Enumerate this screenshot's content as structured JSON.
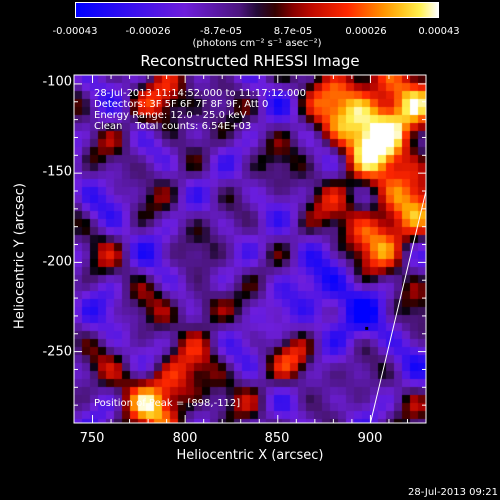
{
  "colorbar": {
    "ticks": [
      "-0.00043",
      "-0.00026",
      "-8.7e-05",
      "8.7e-05",
      "0.00026",
      "0.00043"
    ],
    "unit_label": "(photons cm⁻² s⁻¹ asec⁻²)",
    "min": -0.00043,
    "max": 0.00043
  },
  "chart_data": {
    "type": "heatmap",
    "title": "Reconstructed RHESSI Image",
    "xlabel": "Heliocentric X (arcsec)",
    "ylabel": "Heliocentric Y (arcsec)",
    "xlim": [
      740,
      930
    ],
    "ylim": [
      -290,
      -95
    ],
    "x_ticks": [
      "750",
      "800",
      "850",
      "900"
    ],
    "y_ticks": [
      "-100",
      "-150",
      "-200",
      "-250"
    ],
    "colormap": "blue-purple-black-red-orange-yellow-white",
    "annotations": [
      "28-Jul-2013 11:14:52.000 to 11:17:12.000",
      "Detectors: 3F 5F 6F 7F 8F 9F, Att 0",
      "Energy Range: 12.0 - 25.0 keV",
      "Clean    Total counts: 6.54E+03"
    ],
    "peak_label": "Position of Peak = [898,-112]",
    "peak": [
      898,
      -112
    ],
    "limb_line": [
      [
        900,
        -290
      ],
      [
        930,
        -160
      ]
    ]
  },
  "footer": {
    "timestamp": "28-Jul-2013 09:21"
  }
}
